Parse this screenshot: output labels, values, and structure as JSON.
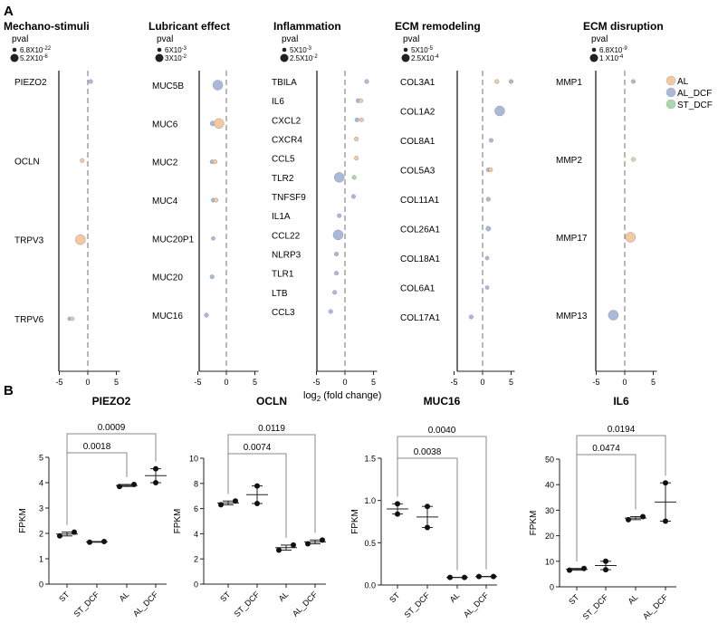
{
  "colors": {
    "AL": "#f5c9a0",
    "AL_DCF": "#a9b9dc",
    "ST_DCF": "#a9d9a9"
  },
  "chart_data": [
    {
      "panel_label": "A",
      "type": "scatter",
      "xlabel_main": "log",
      "xlabel_sub": "2",
      "xlabel_rest": " (fold change)",
      "legend": [
        "AL",
        "AL_DCF",
        "ST_DCF"
      ],
      "legend_placement": "right",
      "xticks": [
        "-5",
        "0",
        "5"
      ],
      "xlim": [
        -5,
        5
      ],
      "groups": [
        {
          "title": "Mechano-stimuli",
          "pval_label": "pval",
          "pval_small": "6.8X10",
          "pval_small_exp": "-22",
          "pval_large": "5.2X10",
          "pval_large_exp": "-6",
          "genes": [
            "PIEZO2",
            "OCLN",
            "TRPV3",
            "TRPV6"
          ],
          "points": [
            {
              "gene": "PIEZO2",
              "group": "AL_DCF",
              "log2fc": 0.5,
              "size": 0.2
            },
            {
              "gene": "OCLN",
              "group": "AL",
              "log2fc": -1,
              "size": 0.2
            },
            {
              "gene": "TRPV3",
              "group": "AL",
              "log2fc": -1.3,
              "size": 1
            },
            {
              "gene": "TRPV6",
              "group": "AL_DCF",
              "log2fc": -3.2,
              "size": 0.15
            },
            {
              "gene": "TRPV6",
              "group": "AL",
              "log2fc": -2.7,
              "size": 0.15
            }
          ]
        },
        {
          "title": "Lubricant effect",
          "pval_label": "pval",
          "pval_small": "6X10",
          "pval_small_exp": "-3",
          "pval_large": "3X10",
          "pval_large_exp": "-2",
          "genes": [
            "MUC5B",
            "MUC6",
            "MUC2",
            "MUC4",
            "MUC20P1",
            "MUC20",
            "MUC16"
          ],
          "points": [
            {
              "gene": "MUC5B",
              "group": "AL_DCF",
              "log2fc": -1.5,
              "size": 1
            },
            {
              "gene": "MUC6",
              "group": "AL_DCF",
              "log2fc": -2.4,
              "size": 0.3
            },
            {
              "gene": "MUC6",
              "group": "AL",
              "log2fc": -1.3,
              "size": 1
            },
            {
              "gene": "MUC2",
              "group": "AL_DCF",
              "log2fc": -2.5,
              "size": 0.2
            },
            {
              "gene": "MUC2",
              "group": "AL",
              "log2fc": -2,
              "size": 0.2
            },
            {
              "gene": "MUC4",
              "group": "AL_DCF",
              "log2fc": -2.3,
              "size": 0.2
            },
            {
              "gene": "MUC4",
              "group": "AL",
              "log2fc": -1.8,
              "size": 0.2
            },
            {
              "gene": "MUC20P1",
              "group": "AL_DCF",
              "log2fc": -2.3,
              "size": 0.15
            },
            {
              "gene": "MUC20",
              "group": "AL_DCF",
              "log2fc": -2.5,
              "size": 0.2
            },
            {
              "gene": "MUC16",
              "group": "AL_DCF",
              "log2fc": -3.5,
              "size": 0.2
            }
          ]
        },
        {
          "title": "Inflammation",
          "pval_label": "pval",
          "pval_small": "5X10",
          "pval_small_exp": "-3",
          "pval_large": "2.5X10",
          "pval_large_exp": "-2",
          "genes": [
            "TBILA",
            "IL6",
            "CXCL2",
            "CXCR4",
            "CCL5",
            "TLR2",
            "TNFSF9",
            "IL1A",
            "CCL22",
            "NLRP3",
            "TLR1",
            "LTB",
            "CCL3"
          ],
          "points": [
            {
              "gene": "TBILA",
              "group": "AL_DCF",
              "log2fc": 3.8,
              "size": 0.2
            },
            {
              "gene": "IL6",
              "group": "AL_DCF",
              "log2fc": 2.3,
              "size": 0.2
            },
            {
              "gene": "IL6",
              "group": "AL",
              "log2fc": 2.8,
              "size": 0.2
            },
            {
              "gene": "CXCL2",
              "group": "AL_DCF",
              "log2fc": 2.1,
              "size": 0.2
            },
            {
              "gene": "CXCL2",
              "group": "AL",
              "log2fc": 2.9,
              "size": 0.2
            },
            {
              "gene": "CXCR4",
              "group": "AL",
              "log2fc": 2,
              "size": 0.2
            },
            {
              "gene": "CCL5",
              "group": "AL",
              "log2fc": 2,
              "size": 0.2
            },
            {
              "gene": "TLR2",
              "group": "AL_DCF",
              "log2fc": -1,
              "size": 1
            },
            {
              "gene": "TLR2",
              "group": "ST_DCF",
              "log2fc": 1.6,
              "size": 0.2
            },
            {
              "gene": "TNFSF9",
              "group": "AL_DCF",
              "log2fc": 1.5,
              "size": 0.2
            },
            {
              "gene": "IL1A",
              "group": "AL_DCF",
              "log2fc": -1,
              "size": 0.2
            },
            {
              "gene": "CCL22",
              "group": "AL_DCF",
              "log2fc": -1.2,
              "size": 1
            },
            {
              "gene": "NLRP3",
              "group": "AL_DCF",
              "log2fc": -1.5,
              "size": 0.2
            },
            {
              "gene": "TLR1",
              "group": "AL_DCF",
              "log2fc": -1.5,
              "size": 0.2
            },
            {
              "gene": "LTB",
              "group": "AL_DCF",
              "log2fc": -1.8,
              "size": 0.2
            },
            {
              "gene": "CCL3",
              "group": "AL_DCF",
              "log2fc": -2.5,
              "size": 0.2
            }
          ]
        },
        {
          "title": "ECM remodeling",
          "pval_label": "pval",
          "pval_small": "5X10",
          "pval_small_exp": "-5",
          "pval_large": "2.5X10",
          "pval_large_exp": "-4",
          "genes": [
            "COL3A1",
            "COL1A2",
            "COL8A1",
            "COL5A3",
            "COL11A1",
            "COL26A1",
            "COL18A1",
            "COL6A1",
            "COL17A1"
          ],
          "points": [
            {
              "gene": "COL3A1",
              "group": "AL",
              "log2fc": 2.5,
              "size": 0.2
            },
            {
              "gene": "COL3A1",
              "group": "AL_DCF",
              "log2fc": 5,
              "size": 0.2
            },
            {
              "gene": "COL1A2",
              "group": "AL_DCF",
              "log2fc": 3,
              "size": 1
            },
            {
              "gene": "COL8A1",
              "group": "AL_DCF",
              "log2fc": 1.5,
              "size": 0.2
            },
            {
              "gene": "COL5A3",
              "group": "AL_DCF",
              "log2fc": 1,
              "size": 0.2
            },
            {
              "gene": "COL5A3",
              "group": "AL",
              "log2fc": 1.4,
              "size": 0.2
            },
            {
              "gene": "COL11A1",
              "group": "AL_DCF",
              "log2fc": 1,
              "size": 0.2
            },
            {
              "gene": "COL26A1",
              "group": "AL_DCF",
              "log2fc": 1,
              "size": 0.3
            },
            {
              "gene": "COL18A1",
              "group": "AL_DCF",
              "log2fc": 0.8,
              "size": 0.15
            },
            {
              "gene": "COL6A1",
              "group": "AL_DCF",
              "log2fc": 0.8,
              "size": 0.15
            },
            {
              "gene": "COL17A1",
              "group": "AL_DCF",
              "log2fc": -2,
              "size": 0.2
            }
          ]
        },
        {
          "title": "ECM disruption",
          "pval_label": "pval",
          "pval_small": "6.8X10",
          "pval_small_exp": "-9",
          "pval_large": "1 X10",
          "pval_large_exp": "-4",
          "genes": [
            "MMP1",
            "MMP2",
            "MMP17",
            "MMP13"
          ],
          "points": [
            {
              "gene": "MMP1",
              "group": "AL_DCF",
              "log2fc": 1.5,
              "size": 0.2
            },
            {
              "gene": "MMP2",
              "group": "AL",
              "log2fc": 1.5,
              "size": 0.2
            },
            {
              "gene": "MMP17",
              "group": "AL",
              "log2fc": 1,
              "size": 1
            },
            {
              "gene": "MMP13",
              "group": "AL_DCF",
              "log2fc": -2,
              "size": 1
            }
          ]
        }
      ]
    },
    {
      "panel_label": "B",
      "type": "scatter",
      "ylabel": "FPKM",
      "categories": [
        "ST",
        "ST_DCF",
        "AL",
        "AL_DCF"
      ],
      "plots": [
        {
          "title": "PIEZO2",
          "ylim": [
            0,
            5
          ],
          "yticks": [
            "0",
            "1",
            "2",
            "3",
            "4",
            "5"
          ],
          "values": [
            [
              1.9,
              2.05
            ],
            [
              1.65,
              1.68
            ],
            [
              3.85,
              3.93
            ],
            [
              4.0,
              4.55
            ]
          ],
          "comparisons": [
            {
              "from": "ST",
              "to": "AL",
              "p": "0.0018"
            },
            {
              "from": "ST",
              "to": "AL_DCF",
              "p": "0.0009"
            }
          ]
        },
        {
          "title": "OCLN",
          "ylim": [
            0,
            10
          ],
          "yticks": [
            "0",
            "2",
            "4",
            "6",
            "8",
            "10"
          ],
          "values": [
            [
              6.3,
              6.6
            ],
            [
              6.4,
              7.8
            ],
            [
              2.7,
              3.1
            ],
            [
              3.2,
              3.5
            ]
          ],
          "comparisons": [
            {
              "from": "ST",
              "to": "AL",
              "p": "0.0074"
            },
            {
              "from": "ST",
              "to": "AL_DCF",
              "p": "0.0119"
            }
          ]
        },
        {
          "title": "MUC16",
          "ylim": [
            0,
            1.5
          ],
          "yticks": [
            "0.0",
            "0.5",
            "1.0",
            "1.5"
          ],
          "values": [
            [
              0.84,
              0.96
            ],
            [
              0.68,
              0.93
            ],
            [
              0.09,
              0.09
            ],
            [
              0.1,
              0.1
            ]
          ],
          "comparisons": [
            {
              "from": "ST",
              "to": "AL",
              "p": "0.0038"
            },
            {
              "from": "ST",
              "to": "AL_DCF",
              "p": "0.0040"
            }
          ]
        },
        {
          "title": "IL6",
          "ylim": [
            0,
            50
          ],
          "yticks": [
            "0",
            "10",
            "20",
            "30",
            "40",
            "50"
          ],
          "values": [
            [
              6.5,
              7.2
            ],
            [
              6.7,
              10
            ],
            [
              26.3,
              27.5
            ],
            [
              25.7,
              40.7
            ]
          ],
          "comparisons": [
            {
              "from": "ST",
              "to": "AL",
              "p": "0.0474"
            },
            {
              "from": "ST",
              "to": "AL_DCF",
              "p": "0.0194"
            }
          ]
        }
      ]
    }
  ]
}
